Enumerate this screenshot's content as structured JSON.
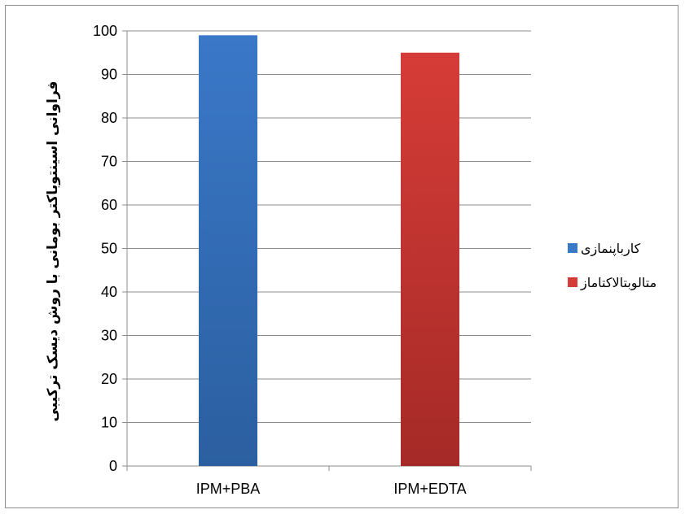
{
  "chart_data": {
    "type": "bar",
    "title": "",
    "xlabel": "",
    "ylabel": "فراوانی اسینتوباکتر بومانی با روش دیسک ترکیبی",
    "categories": [
      "IPM+PBA",
      "IPM+EDTA"
    ],
    "series": [
      {
        "name": "کارباپنمازی",
        "values": [
          99,
          0
        ],
        "color": "#3a78c8",
        "color_dark": "#2b5fa0"
      },
      {
        "name": "متالوبتالاکتاماز",
        "values": [
          0,
          95
        ],
        "color": "#d63c37",
        "color_dark": "#a52a27"
      }
    ],
    "ylim": [
      0,
      100
    ],
    "yticks": [
      0,
      10,
      20,
      30,
      40,
      50,
      60,
      70,
      80,
      90,
      100
    ],
    "grid": true,
    "legend_position": "right"
  }
}
